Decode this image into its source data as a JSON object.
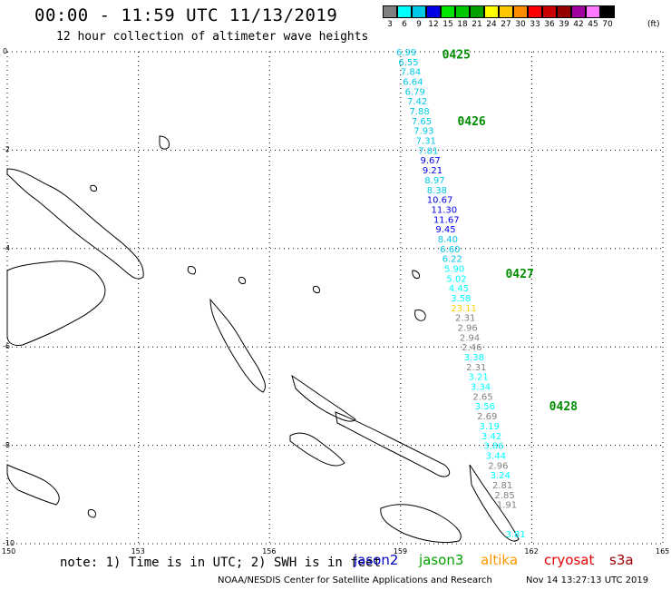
{
  "header": {
    "title": "00:00 - 11:59 UTC 11/13/2019",
    "subtitle": "12 hour collection of altimeter wave heights"
  },
  "color_scale": {
    "unit": "(ft)",
    "bins": [
      {
        "label": "3",
        "color": "#808080"
      },
      {
        "label": "6",
        "color": "#00ffff"
      },
      {
        "label": "9",
        "color": "#00c8e6"
      },
      {
        "label": "12",
        "color": "#0000e6"
      },
      {
        "label": "15",
        "color": "#00e600"
      },
      {
        "label": "18",
        "color": "#00c800"
      },
      {
        "label": "21",
        "color": "#00a000"
      },
      {
        "label": "24",
        "color": "#ffff00"
      },
      {
        "label": "27",
        "color": "#ffc800"
      },
      {
        "label": "30",
        "color": "#ff8c00"
      },
      {
        "label": "33",
        "color": "#ff0000"
      },
      {
        "label": "36",
        "color": "#c80000"
      },
      {
        "label": "39",
        "color": "#960000"
      },
      {
        "label": "42",
        "color": "#a000a0"
      },
      {
        "label": "45",
        "color": "#ff78ff"
      },
      {
        "label": "70",
        "color": "#000000"
      }
    ]
  },
  "axes": {
    "lat_labels": [
      "0",
      "-2",
      "-4",
      "-6",
      "-8",
      "-10"
    ],
    "lon_labels": [
      "150",
      "153",
      "156",
      "159",
      "162",
      "165"
    ]
  },
  "track_times": [
    {
      "label": "0425",
      "lon": 159.95,
      "lat": -0.05
    },
    {
      "label": "0426",
      "lon": 160.3,
      "lat": -1.4
    },
    {
      "label": "0427",
      "lon": 161.4,
      "lat": -4.5
    },
    {
      "label": "0428",
      "lon": 162.4,
      "lat": -7.2
    }
  ],
  "wave_heights": [
    {
      "value": "6.99",
      "lon": 158.9,
      "lat": 0.0,
      "color": "#00c8e6"
    },
    {
      "value": "6.55",
      "lon": 158.95,
      "lat": -0.2,
      "color": "#00c8e6"
    },
    {
      "value": "7.84",
      "lon": 159.0,
      "lat": -0.4,
      "color": "#00c8e6"
    },
    {
      "value": "6.64",
      "lon": 159.05,
      "lat": -0.6,
      "color": "#00c8e6"
    },
    {
      "value": "6.79",
      "lon": 159.1,
      "lat": -0.8,
      "color": "#00c8e6"
    },
    {
      "value": "7.42",
      "lon": 159.15,
      "lat": -1.0,
      "color": "#00c8e6"
    },
    {
      "value": "7.88",
      "lon": 159.2,
      "lat": -1.2,
      "color": "#00c8e6"
    },
    {
      "value": "7.65",
      "lon": 159.25,
      "lat": -1.4,
      "color": "#00c8e6"
    },
    {
      "value": "7.93",
      "lon": 159.3,
      "lat": -1.6,
      "color": "#00c8e6"
    },
    {
      "value": "7.31",
      "lon": 159.35,
      "lat": -1.8,
      "color": "#00c8e6"
    },
    {
      "value": "7.81",
      "lon": 159.4,
      "lat": -2.0,
      "color": "#00c8e6"
    },
    {
      "value": "9.67",
      "lon": 159.45,
      "lat": -2.2,
      "color": "#0000e6"
    },
    {
      "value": "9.21",
      "lon": 159.5,
      "lat": -2.4,
      "color": "#0000e6"
    },
    {
      "value": "8.97",
      "lon": 159.55,
      "lat": -2.6,
      "color": "#00c8e6"
    },
    {
      "value": "8.38",
      "lon": 159.6,
      "lat": -2.8,
      "color": "#00c8e6"
    },
    {
      "value": "10.67",
      "lon": 159.6,
      "lat": -3.0,
      "color": "#0000e6"
    },
    {
      "value": "11.30",
      "lon": 159.7,
      "lat": -3.2,
      "color": "#0000e6"
    },
    {
      "value": "11.67",
      "lon": 159.75,
      "lat": -3.4,
      "color": "#0000e6"
    },
    {
      "value": "9.45",
      "lon": 159.8,
      "lat": -3.6,
      "color": "#0000e6"
    },
    {
      "value": "8.40",
      "lon": 159.85,
      "lat": -3.8,
      "color": "#00c8e6"
    },
    {
      "value": "6.60",
      "lon": 159.9,
      "lat": -4.0,
      "color": "#00c8e6"
    },
    {
      "value": "6.22",
      "lon": 159.95,
      "lat": -4.2,
      "color": "#00c8e6"
    },
    {
      "value": "5.90",
      "lon": 160.0,
      "lat": -4.4,
      "color": "#00ffff"
    },
    {
      "value": "5.02",
      "lon": 160.05,
      "lat": -4.6,
      "color": "#00ffff"
    },
    {
      "value": "4.45",
      "lon": 160.1,
      "lat": -4.8,
      "color": "#00ffff"
    },
    {
      "value": "3.58",
      "lon": 160.15,
      "lat": -5.0,
      "color": "#00ffff"
    },
    {
      "value": "23.11",
      "lon": 160.15,
      "lat": -5.2,
      "color": "#ffd000"
    },
    {
      "value": "2.31",
      "lon": 160.25,
      "lat": -5.4,
      "color": "#808080"
    },
    {
      "value": "2.96",
      "lon": 160.3,
      "lat": -5.6,
      "color": "#808080"
    },
    {
      "value": "2.94",
      "lon": 160.35,
      "lat": -5.8,
      "color": "#808080"
    },
    {
      "value": "2.46",
      "lon": 160.4,
      "lat": -6.0,
      "color": "#808080"
    },
    {
      "value": "3.38",
      "lon": 160.45,
      "lat": -6.2,
      "color": "#00ffff"
    },
    {
      "value": "2.31",
      "lon": 160.5,
      "lat": -6.4,
      "color": "#808080"
    },
    {
      "value": "3.21",
      "lon": 160.55,
      "lat": -6.6,
      "color": "#00ffff"
    },
    {
      "value": "3.34",
      "lon": 160.6,
      "lat": -6.8,
      "color": "#00ffff"
    },
    {
      "value": "2.65",
      "lon": 160.65,
      "lat": -7.0,
      "color": "#808080"
    },
    {
      "value": "3.56",
      "lon": 160.7,
      "lat": -7.2,
      "color": "#00ffff"
    },
    {
      "value": "2.69",
      "lon": 160.75,
      "lat": -7.4,
      "color": "#808080"
    },
    {
      "value": "3.19",
      "lon": 160.8,
      "lat": -7.6,
      "color": "#00ffff"
    },
    {
      "value": "3.42",
      "lon": 160.85,
      "lat": -7.8,
      "color": "#00ffff"
    },
    {
      "value": "3.86",
      "lon": 160.9,
      "lat": -8.0,
      "color": "#00ffff"
    },
    {
      "value": "3.44",
      "lon": 160.95,
      "lat": -8.2,
      "color": "#00ffff"
    },
    {
      "value": "2.96",
      "lon": 161.0,
      "lat": -8.4,
      "color": "#808080"
    },
    {
      "value": "3.24",
      "lon": 161.05,
      "lat": -8.6,
      "color": "#00ffff"
    },
    {
      "value": "2.81",
      "lon": 161.1,
      "lat": -8.8,
      "color": "#808080"
    },
    {
      "value": "2.85",
      "lon": 161.15,
      "lat": -9.0,
      "color": "#808080"
    },
    {
      "value": "1.91",
      "lon": 161.2,
      "lat": -9.2,
      "color": "#808080"
    },
    {
      "value": "3.81",
      "lon": 161.4,
      "lat": -9.8,
      "color": "#00ffff"
    }
  ],
  "footer": {
    "note": "note: 1) Time is in UTC; 2) SWH is in feet",
    "satellites": [
      {
        "name": "jason2",
        "color": "#0000c8"
      },
      {
        "name": "jason3",
        "color": "#00a000"
      },
      {
        "name": "altika",
        "color": "#ff9600"
      },
      {
        "name": "cryosat",
        "color": "#e60000"
      },
      {
        "name": "s3a",
        "color": "#a00000"
      }
    ],
    "credit": "NOAA/NESDIS Center for Satellite Applications and Research",
    "timestamp": "Nov 14 13:27:13 UTC 2019"
  }
}
